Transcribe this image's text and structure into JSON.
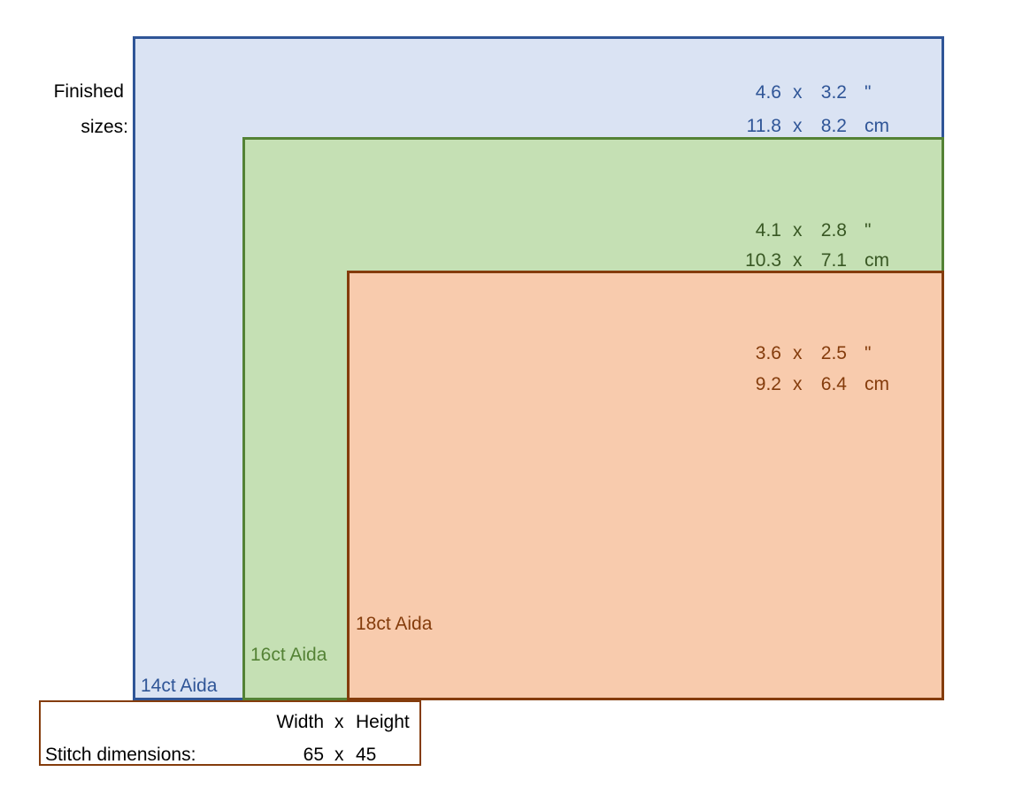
{
  "finished_label": {
    "line1": "Finished",
    "line2": "sizes:"
  },
  "sizes": [
    {
      "name": "14ct Aida",
      "color": "#2f5597",
      "fill": "#dae3f3",
      "inches": {
        "w": "4.6",
        "x": "x",
        "h": "3.2",
        "unit": "\""
      },
      "cm": {
        "w": "11.8",
        "x": "x",
        "h": "8.2",
        "unit": "cm"
      }
    },
    {
      "name": "16ct Aida",
      "color": "#548235",
      "fill": "#c5e0b4",
      "inches": {
        "w": "4.1",
        "x": "x",
        "h": "2.8",
        "unit": "\""
      },
      "cm": {
        "w": "10.3",
        "x": "x",
        "h": "7.1",
        "unit": "cm"
      }
    },
    {
      "name": "18ct Aida",
      "color": "#843c0c",
      "fill": "#f8cbad",
      "inches": {
        "w": "3.6",
        "x": "x",
        "h": "2.5",
        "unit": "\""
      },
      "cm": {
        "w": "9.2",
        "x": "x",
        "h": "6.4",
        "unit": "cm"
      }
    }
  ],
  "stitch": {
    "label": "Stitch dimensions:",
    "header_w": "Width",
    "header_x": "x",
    "header_h": "Height",
    "w": "65",
    "x": "x",
    "h": "45"
  }
}
